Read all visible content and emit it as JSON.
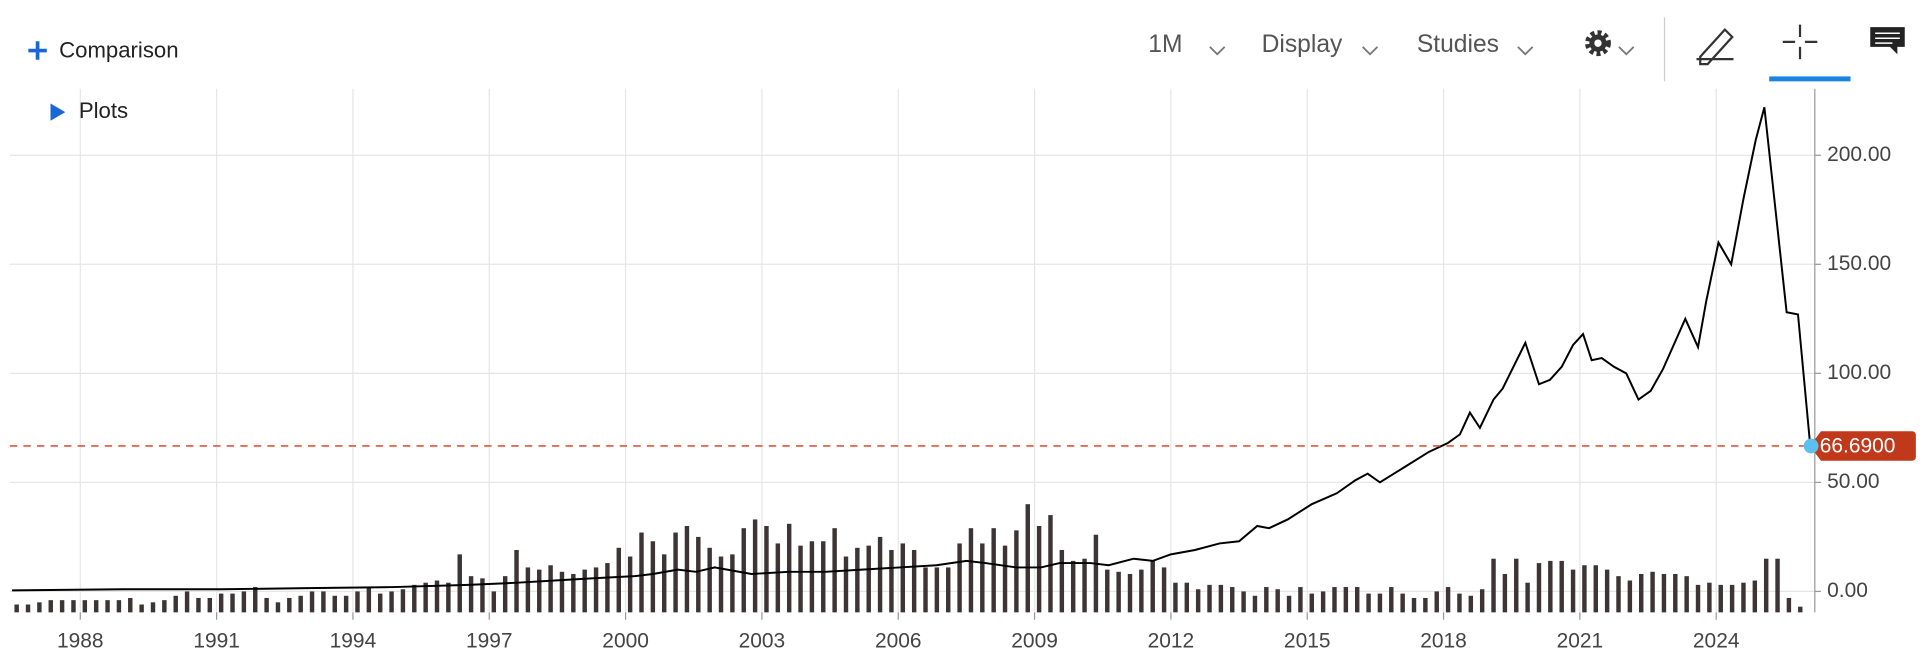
{
  "toolbar": {
    "comparison": "Comparison",
    "interval": "1M",
    "display": "Display",
    "studies": "Studies",
    "plots": "Plots"
  },
  "chart_data": {
    "type": "line",
    "xlim": [
      1986.45,
      2026.17
    ],
    "ylim": [
      -9.6,
      230.5
    ],
    "xticks": [
      1988,
      1991,
      1994,
      1997,
      2000,
      2003,
      2006,
      2009,
      2012,
      2015,
      2018,
      2021,
      2024
    ],
    "yticks": [
      {
        "value": 0,
        "label": "0.00"
      },
      {
        "value": 50,
        "label": "50.00"
      },
      {
        "value": 100,
        "label": "100.00"
      },
      {
        "value": 150,
        "label": "150.00"
      },
      {
        "value": 200,
        "label": "200.00"
      }
    ],
    "grid": true,
    "last_price": {
      "value": 66.69,
      "label": "66.6900"
    },
    "series": [
      {
        "type": "line",
        "color": "#000000",
        "x": [
          1986.5,
          1988.95,
          1991.1,
          1993,
          1994.9,
          1996.54,
          1997.62,
          1998.44,
          1999.25,
          2000.2,
          2000.6,
          2001.15,
          2001.55,
          2001.96,
          2002.77,
          2003.59,
          2004.4,
          2005.2,
          2006.03,
          2006.84,
          2007.5,
          2007.92,
          2008.6,
          2009.14,
          2009.55,
          2010.23,
          2010.63,
          2011.18,
          2011.6,
          2012,
          2012.53,
          2013.07,
          2013.5,
          2013.9,
          2014.16,
          2014.57,
          2015.1,
          2015.65,
          2016.06,
          2016.33,
          2016.6,
          2017.14,
          2017.68,
          2018.09,
          2018.36,
          2018.58,
          2018.8,
          2019.1,
          2019.3,
          2019.8,
          2020.1,
          2020.34,
          2020.6,
          2020.85,
          2021.07,
          2021.26,
          2021.48,
          2021.75,
          2022.02,
          2022.29,
          2022.56,
          2022.83,
          2023.32,
          2023.6,
          2023.78,
          2024.05,
          2024.33,
          2024.6,
          2024.87,
          2025.06,
          2025.55,
          2025.8,
          2026.07
        ],
        "values": [
          0.5,
          1,
          1,
          1.5,
          2,
          3,
          4,
          5,
          6,
          7,
          8,
          10,
          9,
          11,
          8,
          9,
          9,
          10,
          11,
          12,
          14,
          13,
          11,
          11,
          13,
          13,
          12,
          15,
          14,
          17,
          19,
          22,
          23,
          30,
          29,
          33,
          40,
          45,
          51,
          54,
          50,
          57,
          64,
          68,
          72,
          82,
          75,
          88,
          93,
          114,
          95,
          97,
          103,
          113,
          118,
          106,
          107,
          103,
          100,
          88,
          92,
          102,
          125,
          112,
          133,
          160,
          150,
          180,
          207,
          222,
          128,
          127,
          66.69
        ]
      },
      {
        "type": "bar",
        "color": "#3d3535",
        "x": [
          1986.6,
          1986.85,
          1987.1,
          1987.35,
          1987.6,
          1987.85,
          1988.1,
          1988.35,
          1988.6,
          1988.85,
          1989.1,
          1989.35,
          1989.6,
          1989.85,
          1990.1,
          1990.35,
          1990.6,
          1990.85,
          1991.1,
          1991.35,
          1991.6,
          1991.85,
          1992.1,
          1992.35,
          1992.6,
          1992.85,
          1993.1,
          1993.35,
          1993.6,
          1993.85,
          1994.1,
          1994.35,
          1994.6,
          1994.85,
          1995.1,
          1995.35,
          1995.6,
          1995.85,
          1996.1,
          1996.35,
          1996.6,
          1996.85,
          1997.1,
          1997.35,
          1997.6,
          1997.85,
          1998.1,
          1998.35,
          1998.6,
          1998.85,
          1999.1,
          1999.35,
          1999.6,
          1999.85,
          2000.1,
          2000.35,
          2000.6,
          2000.85,
          2001.1,
          2001.35,
          2001.6,
          2001.85,
          2002.1,
          2002.35,
          2002.6,
          2002.85,
          2003.1,
          2003.35,
          2003.6,
          2003.85,
          2004.1,
          2004.35,
          2004.6,
          2004.85,
          2005.1,
          2005.35,
          2005.6,
          2005.85,
          2006.1,
          2006.35,
          2006.6,
          2006.85,
          2007.1,
          2007.35,
          2007.6,
          2007.85,
          2008.1,
          2008.35,
          2008.6,
          2008.85,
          2009.1,
          2009.35,
          2009.6,
          2009.85,
          2010.1,
          2010.35,
          2010.6,
          2010.85,
          2011.1,
          2011.35,
          2011.6,
          2011.85,
          2012.1,
          2012.35,
          2012.6,
          2012.85,
          2013.1,
          2013.35,
          2013.6,
          2013.85,
          2014.1,
          2014.35,
          2014.6,
          2014.85,
          2015.1,
          2015.35,
          2015.6,
          2015.85,
          2016.1,
          2016.35,
          2016.6,
          2016.85,
          2017.1,
          2017.35,
          2017.6,
          2017.85,
          2018.1,
          2018.35,
          2018.6,
          2018.85,
          2019.1,
          2019.35,
          2019.6,
          2019.85,
          2020.1,
          2020.35,
          2020.6,
          2020.85,
          2021.1,
          2021.35,
          2021.6,
          2021.85,
          2022.1,
          2022.35,
          2022.6,
          2022.85,
          2023.1,
          2023.35,
          2023.6,
          2023.85,
          2024.1,
          2024.35,
          2024.6,
          2024.85,
          2025.1,
          2025.35,
          2025.6,
          2025.85
        ],
        "values": [
          -6,
          -6,
          -5,
          -4,
          -4,
          -4,
          -4,
          -4,
          -4,
          -4,
          -3,
          -6,
          -5,
          -4,
          -2,
          0,
          -3,
          -3,
          -1,
          -1,
          0,
          2,
          -3,
          -5,
          -3,
          -2,
          0,
          0,
          -2,
          -2,
          0,
          2,
          -1,
          0,
          1,
          3,
          4,
          5,
          4,
          17,
          7,
          6,
          0,
          7,
          19,
          11,
          10,
          12,
          9,
          8,
          10,
          11,
          13,
          20,
          16,
          27,
          23,
          17,
          27,
          30,
          25,
          20,
          16,
          17,
          29,
          33,
          30,
          22,
          31,
          21,
          23,
          23,
          29,
          16,
          20,
          21,
          25,
          19,
          22,
          19,
          11,
          11,
          11,
          22,
          29,
          22,
          29,
          21,
          28,
          40,
          30,
          35,
          19,
          14,
          15,
          26,
          10,
          9,
          8,
          10,
          14,
          11,
          4,
          4,
          1,
          3,
          3,
          2,
          0,
          -2,
          2,
          1,
          -2,
          2,
          -1,
          0,
          2,
          2,
          2,
          -1,
          -1,
          2,
          -1,
          -3,
          -3,
          0,
          2,
          -1,
          -2,
          1,
          15,
          8,
          15,
          4,
          13,
          14,
          14,
          10,
          12,
          12,
          10,
          7,
          5,
          8,
          9,
          8,
          8,
          7,
          3,
          4,
          3,
          3,
          4,
          5,
          15,
          15,
          -3,
          -7
        ]
      }
    ]
  }
}
